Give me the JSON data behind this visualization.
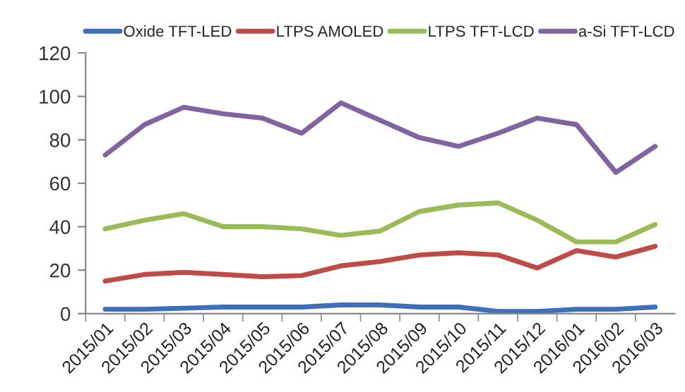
{
  "chart_data": {
    "type": "line",
    "categories": [
      "2015/01",
      "2015/02",
      "2015/03",
      "2015/04",
      "2015/05",
      "2015/06",
      "2015/07",
      "2015/08",
      "2015/09",
      "2015/10",
      "2015/11",
      "2015/12",
      "2016/01",
      "2016/02",
      "2016/03"
    ],
    "series": [
      {
        "name": "Oxide TFT-LED",
        "color": "#3d70b8",
        "values": [
          2,
          2,
          2.5,
          3,
          3,
          3,
          4,
          4,
          3,
          3,
          1,
          1,
          2,
          2,
          3
        ]
      },
      {
        "name": "LTPS AMOLED",
        "color": "#be4b48",
        "values": [
          15,
          18,
          19,
          18,
          17,
          17.5,
          22,
          24,
          27,
          28,
          27,
          21,
          29,
          26,
          31
        ]
      },
      {
        "name": "LTPS TFT-LCD",
        "color": "#9bbb59",
        "values": [
          39,
          43,
          46,
          40,
          40,
          39,
          36,
          38,
          47,
          50,
          51,
          43,
          33,
          33,
          41
        ]
      },
      {
        "name": "a-Si TFT-LCD",
        "color": "#8064a2",
        "values": [
          73,
          87,
          95,
          92,
          90,
          83,
          97,
          89,
          81,
          77,
          83,
          90,
          87,
          65,
          77
        ]
      }
    ],
    "ylim": [
      0,
      120
    ],
    "yticks": [
      0,
      20,
      40,
      60,
      80,
      100,
      120
    ],
    "grid": false,
    "legend": "top",
    "marker": "none",
    "line_style": "solid"
  }
}
